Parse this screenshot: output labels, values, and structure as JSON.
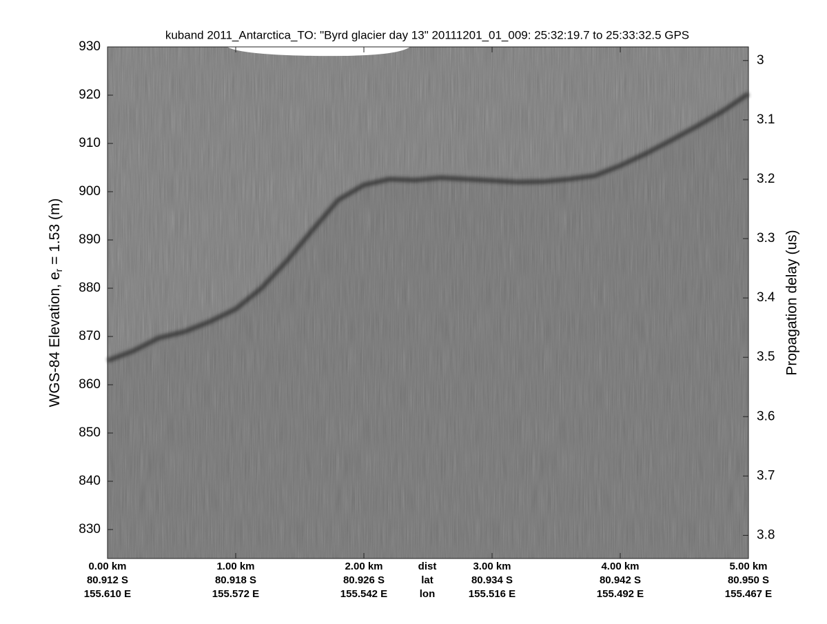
{
  "chart_data": {
    "type": "echogram",
    "title": "kuband 2011_Antarctica_TO: \"Byrd glacier day 13\"  20111201_01_009: 25:32:19.7 to 25:33:32.5 GPS",
    "y_label": "WGS-84 Elevation, e",
    "y_label_sub": "r",
    "y_label_end": " = 1.53 (m)",
    "y2_label": "Propagation delay (us)",
    "xlim": [
      0,
      5
    ],
    "xticks": [
      {
        "value": 0,
        "label": "0.00 km"
      },
      {
        "value": 1,
        "label": "1.00 km"
      },
      {
        "value": 2,
        "label": "2.00 km"
      },
      {
        "value": 3,
        "label": "3.00 km"
      },
      {
        "value": 4,
        "label": "4.00 km"
      },
      {
        "value": 5,
        "label": "5.00 km"
      }
    ],
    "lat_labels": [
      "80.912 S",
      "80.918 S",
      "80.926 S",
      "80.934 S",
      "80.942 S",
      "80.950 S"
    ],
    "lon_labels": [
      "155.610 E",
      "155.572 E",
      "155.542 E",
      "155.516 E",
      "155.492 E",
      "155.467 E"
    ],
    "row_labels": [
      "dist",
      "lat",
      "lon"
    ],
    "ylim": [
      824,
      930
    ],
    "yticks": [
      830,
      840,
      850,
      860,
      870,
      880,
      890,
      900,
      910,
      920,
      930
    ],
    "y2lim": [
      3.839,
      2.977
    ],
    "y2ticks": [
      3,
      3.1,
      3.2,
      3.3,
      3.4,
      3.5,
      3.6,
      3.7,
      3.8
    ],
    "x": [
      0,
      0.2,
      0.4,
      0.6,
      0.8,
      1.0,
      1.2,
      1.4,
      1.6,
      1.8,
      2.0,
      2.2,
      2.4,
      2.6,
      2.8,
      3.0,
      3.2,
      3.4,
      3.6,
      3.8,
      4.0,
      4.2,
      4.4,
      4.6,
      4.8,
      5.0
    ],
    "series": [
      {
        "color": "#2e2e2e",
        "values": [
          865.0,
          867.0,
          869.7,
          871.0,
          873.1,
          875.7,
          880.0,
          885.7,
          892.1,
          898.3,
          901.4,
          902.6,
          902.4,
          902.9,
          902.6,
          902.3,
          902.0,
          902.1,
          902.6,
          903.3,
          905.4,
          907.9,
          910.7,
          913.6,
          916.7,
          920.3
        ]
      }
    ]
  }
}
